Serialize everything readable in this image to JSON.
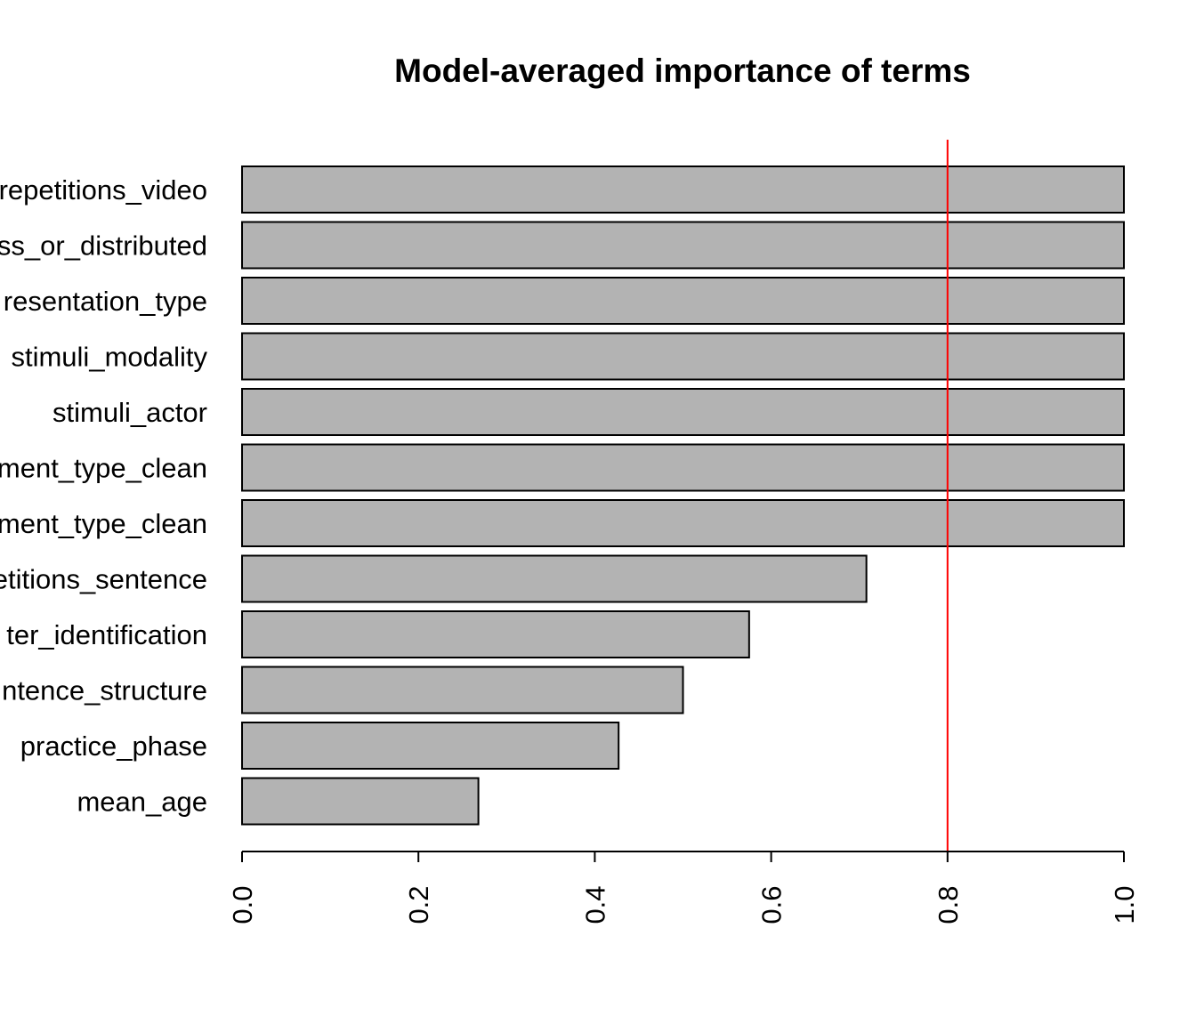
{
  "chart_data": {
    "type": "bar",
    "orientation": "horizontal",
    "title": "Model-averaged importance of terms",
    "xlabel": "",
    "ylabel": "",
    "categories": [
      "repetitions_video",
      "ss_or_distributed",
      "resentation_type",
      "stimuli_modality",
      "stimuli_actor",
      "ment_type_clean",
      "ment_type_clean",
      "etitions_sentence",
      "ter_identification",
      "ntence_structure",
      "practice_phase",
      "mean_age"
    ],
    "values": [
      1.0,
      1.0,
      1.0,
      1.0,
      1.0,
      1.0,
      1.0,
      0.708,
      0.575,
      0.5,
      0.427,
      0.268
    ],
    "xlim": [
      0,
      1
    ],
    "ticks": [
      "0.0",
      "0.2",
      "0.4",
      "0.6",
      "0.8",
      "1.0"
    ],
    "tick_values": [
      0,
      0.2,
      0.4,
      0.6,
      0.8,
      1.0
    ],
    "reference_line": 0.8,
    "bar_color": "#b3b3b3",
    "bar_border_color": "#000000",
    "reference_line_color": "#ff0000",
    "grid": false,
    "legend": "none"
  }
}
